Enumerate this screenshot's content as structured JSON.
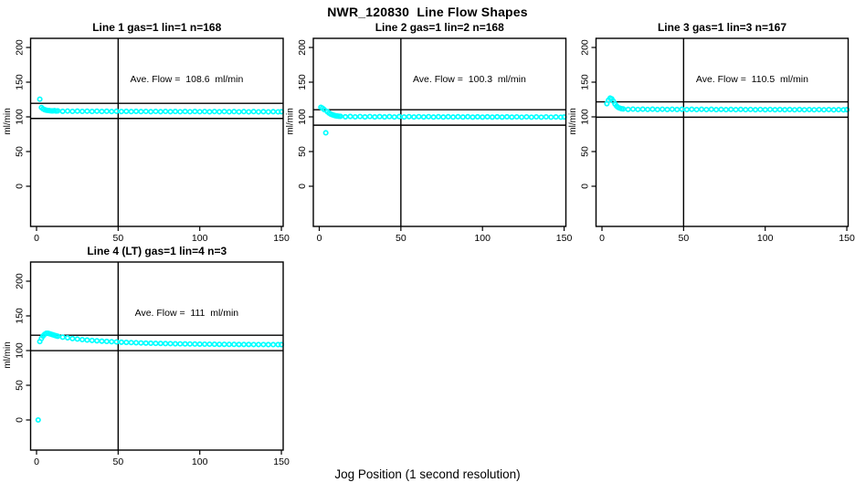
{
  "page_title": "NWR_120830  Line Flow Shapes",
  "x_axis_label": "Jog Position (1 second resolution)",
  "colors": {
    "points": "#00FFFF",
    "axis": "#000000",
    "background": "#FFFFFF"
  },
  "chart_data": [
    {
      "type": "scatter",
      "title": "Line 1 gas=1 lin=1 n=168",
      "ylabel": "ml/min",
      "annotation": "Ave. Flow =  108.6  ml/min",
      "ave_flow_ml_min": 108.6,
      "n": 168,
      "x_ticks": [
        0,
        50,
        100,
        150
      ],
      "y_ticks": [
        0,
        50,
        100,
        150,
        200
      ],
      "vline_x": 50,
      "hlines": [
        119.5,
        97.7
      ],
      "points": [
        [
          2,
          125.5
        ],
        [
          3,
          113.5
        ],
        [
          4,
          111.5
        ],
        [
          5,
          110.3
        ],
        [
          6,
          109.6
        ],
        [
          7,
          109.2
        ],
        [
          8,
          108.9
        ],
        [
          9,
          108.7
        ],
        [
          10,
          108.6
        ],
        [
          11,
          108.9
        ],
        [
          12,
          108.4
        ],
        [
          13,
          108.6
        ],
        [
          16,
          108.0
        ],
        [
          19,
          108.4
        ],
        [
          22,
          107.9
        ],
        [
          25,
          108.3
        ],
        [
          28,
          107.9
        ],
        [
          31,
          108.2
        ],
        [
          34,
          107.8
        ],
        [
          37,
          108.2
        ],
        [
          40,
          107.8
        ],
        [
          43,
          108.1
        ],
        [
          46,
          107.7
        ],
        [
          49,
          108.1
        ],
        [
          52,
          107.7
        ],
        [
          55,
          108.0
        ],
        [
          58,
          107.6
        ],
        [
          61,
          108.0
        ],
        [
          64,
          107.6
        ],
        [
          67,
          107.9
        ],
        [
          70,
          107.5
        ],
        [
          73,
          107.9
        ],
        [
          76,
          107.5
        ],
        [
          79,
          107.9
        ],
        [
          82,
          107.5
        ],
        [
          85,
          107.8
        ],
        [
          88,
          107.4
        ],
        [
          91,
          107.8
        ],
        [
          94,
          107.4
        ],
        [
          97,
          107.8
        ],
        [
          100,
          107.4
        ],
        [
          103,
          107.7
        ],
        [
          106,
          107.3
        ],
        [
          109,
          107.7
        ],
        [
          112,
          107.3
        ],
        [
          115,
          107.7
        ],
        [
          118,
          107.3
        ],
        [
          121,
          107.6
        ],
        [
          124,
          107.2
        ],
        [
          127,
          107.6
        ],
        [
          130,
          107.2
        ],
        [
          133,
          107.6
        ],
        [
          136,
          107.2
        ],
        [
          139,
          107.5
        ],
        [
          142,
          107.2
        ],
        [
          145,
          107.5
        ],
        [
          148,
          107.2
        ],
        [
          150,
          107.4
        ]
      ]
    },
    {
      "type": "scatter",
      "title": "Line 2 gas=1 lin=2 n=168",
      "ylabel": "ml/min",
      "annotation": "Ave. Flow =  100.3  ml/min",
      "ave_flow_ml_min": 100.3,
      "n": 168,
      "x_ticks": [
        0,
        50,
        100,
        150
      ],
      "y_ticks": [
        0,
        50,
        100,
        150,
        200
      ],
      "vline_x": 50,
      "hlines": [
        110.3,
        88.0
      ],
      "points": [
        [
          1,
          113.8
        ],
        [
          2,
          112.5
        ],
        [
          3,
          110.5
        ],
        [
          4,
          77.0
        ],
        [
          5,
          107.5
        ],
        [
          6,
          105.5
        ],
        [
          7,
          104.0
        ],
        [
          8,
          103.0
        ],
        [
          9,
          102.2
        ],
        [
          10,
          101.6
        ],
        [
          11,
          101.2
        ],
        [
          12,
          100.9
        ],
        [
          13,
          100.8
        ],
        [
          16,
          100.1
        ],
        [
          19,
          100.6
        ],
        [
          22,
          100.0
        ],
        [
          25,
          100.5
        ],
        [
          28,
          99.9
        ],
        [
          31,
          100.5
        ],
        [
          34,
          99.9
        ],
        [
          37,
          100.4
        ],
        [
          40,
          99.9
        ],
        [
          43,
          100.4
        ],
        [
          46,
          99.8
        ],
        [
          49,
          100.4
        ],
        [
          52,
          99.8
        ],
        [
          55,
          100.3
        ],
        [
          58,
          99.8
        ],
        [
          61,
          100.3
        ],
        [
          64,
          99.8
        ],
        [
          67,
          100.3
        ],
        [
          70,
          99.7
        ],
        [
          73,
          100.2
        ],
        [
          76,
          99.7
        ],
        [
          79,
          100.2
        ],
        [
          82,
          99.7
        ],
        [
          85,
          100.2
        ],
        [
          88,
          99.7
        ],
        [
          91,
          100.2
        ],
        [
          94,
          99.6
        ],
        [
          97,
          100.1
        ],
        [
          100,
          99.6
        ],
        [
          103,
          100.1
        ],
        [
          106,
          99.6
        ],
        [
          109,
          100.1
        ],
        [
          112,
          99.6
        ],
        [
          115,
          100.1
        ],
        [
          118,
          99.6
        ],
        [
          121,
          100.0
        ],
        [
          124,
          99.5
        ],
        [
          127,
          100.0
        ],
        [
          130,
          99.5
        ],
        [
          133,
          100.0
        ],
        [
          136,
          99.5
        ],
        [
          139,
          100.0
        ],
        [
          142,
          99.5
        ],
        [
          145,
          99.9
        ],
        [
          148,
          99.5
        ],
        [
          150,
          99.8
        ]
      ]
    },
    {
      "type": "scatter",
      "title": "Line 3 gas=1 lin=3 n=167",
      "ylabel": "ml/min",
      "annotation": "Ave. Flow =  110.5  ml/min",
      "ave_flow_ml_min": 110.5,
      "n": 167,
      "x_ticks": [
        0,
        50,
        100,
        150
      ],
      "y_ticks": [
        0,
        50,
        100,
        150,
        200
      ],
      "vline_x": 50,
      "hlines": [
        121.6,
        99.5
      ],
      "points": [
        [
          3,
          119.0
        ],
        [
          4,
          124.0
        ],
        [
          5,
          127.0
        ],
        [
          6,
          126.0
        ],
        [
          7,
          122.5
        ],
        [
          8,
          118.5
        ],
        [
          9,
          115.5
        ],
        [
          10,
          113.5
        ],
        [
          11,
          112.5
        ],
        [
          12,
          111.8
        ],
        [
          13,
          111.4
        ],
        [
          16,
          110.8
        ],
        [
          19,
          111.2
        ],
        [
          22,
          110.7
        ],
        [
          25,
          111.1
        ],
        [
          28,
          110.7
        ],
        [
          31,
          111.1
        ],
        [
          34,
          110.6
        ],
        [
          37,
          111.0
        ],
        [
          40,
          110.6
        ],
        [
          43,
          111.0
        ],
        [
          46,
          110.6
        ],
        [
          49,
          111.0
        ],
        [
          52,
          110.5
        ],
        [
          55,
          110.9
        ],
        [
          58,
          110.5
        ],
        [
          61,
          110.9
        ],
        [
          64,
          110.5
        ],
        [
          67,
          110.9
        ],
        [
          70,
          110.4
        ],
        [
          73,
          110.8
        ],
        [
          76,
          110.4
        ],
        [
          79,
          110.8
        ],
        [
          82,
          110.4
        ],
        [
          85,
          110.8
        ],
        [
          88,
          110.4
        ],
        [
          91,
          110.7
        ],
        [
          94,
          110.3
        ],
        [
          97,
          110.7
        ],
        [
          100,
          110.3
        ],
        [
          103,
          110.7
        ],
        [
          106,
          110.3
        ],
        [
          109,
          110.6
        ],
        [
          112,
          110.3
        ],
        [
          115,
          110.6
        ],
        [
          118,
          110.2
        ],
        [
          121,
          110.6
        ],
        [
          124,
          110.2
        ],
        [
          127,
          110.5
        ],
        [
          130,
          110.2
        ],
        [
          133,
          110.5
        ],
        [
          136,
          110.2
        ],
        [
          139,
          110.5
        ],
        [
          142,
          110.1
        ],
        [
          145,
          110.4
        ],
        [
          148,
          110.1
        ],
        [
          150,
          110.4
        ]
      ]
    },
    {
      "type": "scatter",
      "title": "Line 4 (LT) gas=1 lin=4 n=3",
      "ylabel": "ml/min",
      "annotation": "Ave. Flow =  111  ml/min",
      "ave_flow_ml_min": 111,
      "n": 3,
      "x_ticks": [
        0,
        50,
        100,
        150
      ],
      "y_ticks": [
        0,
        50,
        100,
        150,
        200
      ],
      "vline_x": 50,
      "hlines": [
        122.1,
        99.9
      ],
      "points": [
        [
          1,
          0
        ],
        [
          2,
          113.0
        ],
        [
          3,
          117.5
        ],
        [
          4,
          121.0
        ],
        [
          5,
          123.5
        ],
        [
          6,
          125.0
        ],
        [
          7,
          125.0
        ],
        [
          8,
          124.3
        ],
        [
          9,
          123.5
        ],
        [
          10,
          122.8
        ],
        [
          11,
          122.0
        ],
        [
          12,
          121.3
        ],
        [
          13,
          120.6
        ],
        [
          16,
          119.3
        ],
        [
          19,
          118.4
        ],
        [
          22,
          117.3
        ],
        [
          25,
          116.6
        ],
        [
          28,
          115.8
        ],
        [
          31,
          115.2
        ],
        [
          34,
          114.6
        ],
        [
          37,
          114.1
        ],
        [
          40,
          113.6
        ],
        [
          43,
          113.2
        ],
        [
          46,
          112.8
        ],
        [
          49,
          112.5
        ],
        [
          52,
          112.1
        ],
        [
          55,
          111.8
        ],
        [
          58,
          111.5
        ],
        [
          61,
          111.3
        ],
        [
          64,
          111.0
        ],
        [
          67,
          110.8
        ],
        [
          70,
          110.6
        ],
        [
          73,
          110.4
        ],
        [
          76,
          110.3
        ],
        [
          79,
          110.1
        ],
        [
          82,
          110.0
        ],
        [
          85,
          109.8
        ],
        [
          88,
          109.7
        ],
        [
          91,
          109.6
        ],
        [
          94,
          109.5
        ],
        [
          97,
          109.4
        ],
        [
          100,
          109.3
        ],
        [
          103,
          109.2
        ],
        [
          106,
          109.2
        ],
        [
          109,
          109.1
        ],
        [
          112,
          109.0
        ],
        [
          115,
          109.0
        ],
        [
          118,
          108.9
        ],
        [
          121,
          108.9
        ],
        [
          124,
          108.8
        ],
        [
          127,
          108.8
        ],
        [
          130,
          108.8
        ],
        [
          133,
          108.7
        ],
        [
          136,
          108.7
        ],
        [
          139,
          108.7
        ],
        [
          142,
          108.6
        ],
        [
          145,
          108.6
        ],
        [
          148,
          108.6
        ],
        [
          150,
          108.6
        ]
      ]
    }
  ]
}
